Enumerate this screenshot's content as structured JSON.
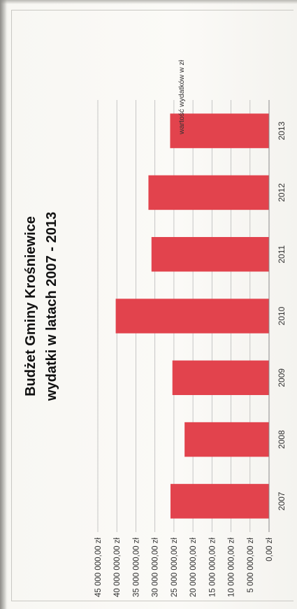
{
  "chart_data": {
    "type": "bar",
    "title_lines": [
      "Budżet Gminy Krośniewice",
      "wydatki w latach 2007 - 2013"
    ],
    "categories": [
      "2007",
      "2008",
      "2009",
      "2010",
      "2011",
      "2012",
      "2013"
    ],
    "series": [
      {
        "name": "wartość wydatków w zł",
        "values": [
          25900000,
          22200000,
          25400000,
          40300000,
          30900000,
          31700000,
          26000000
        ]
      }
    ],
    "ylim": [
      0,
      45000000
    ],
    "y_ticks": [
      0,
      5000000,
      10000000,
      15000000,
      20000000,
      25000000,
      30000000,
      35000000,
      40000000,
      45000000
    ],
    "y_tick_labels": [
      "0,00 zł",
      "5 000 000,00 zł",
      "10 000 000,00 zł",
      "15 000 000,00 zł",
      "20 000 000,00 zł",
      "25 000 000,00 zł",
      "30 000 000,00 zł",
      "35 000 000,00 zł",
      "40 000 000,00 zł",
      "45 000 000,00 zł"
    ],
    "grid": true,
    "legend_position": "right",
    "orientation": "page rotated 90° counter-clockwise",
    "bar_color": "#e2434d"
  }
}
